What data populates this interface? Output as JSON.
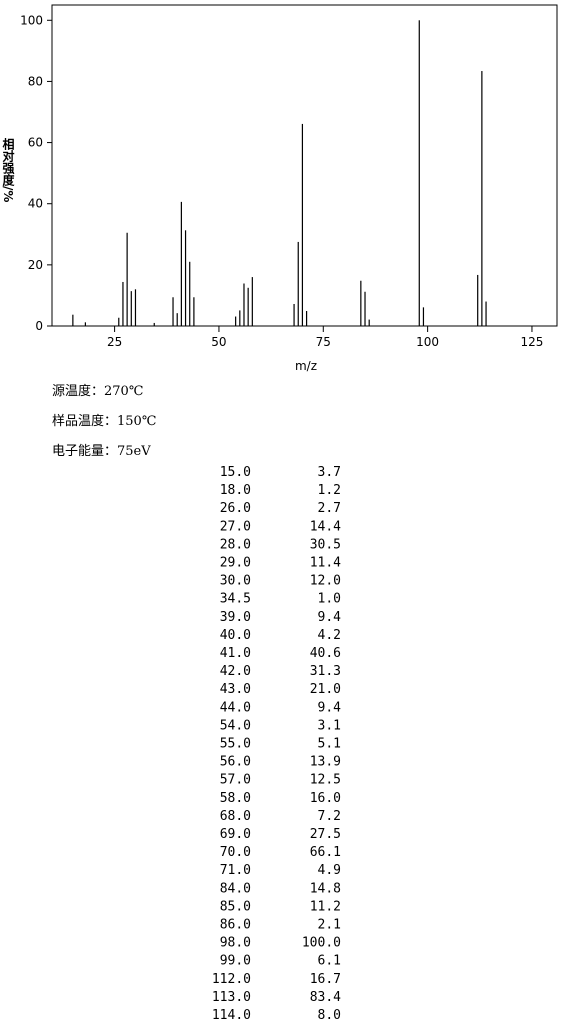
{
  "chart_data": {
    "type": "bar",
    "y_label": "相对强度/%",
    "x_label": "m/z",
    "color": "#000000",
    "x": [
      15.0,
      18.0,
      26.0,
      27.0,
      28.0,
      29.0,
      30.0,
      34.5,
      39.0,
      40.0,
      41.0,
      42.0,
      43.0,
      44.0,
      54.0,
      55.0,
      56.0,
      57.0,
      58.0,
      68.0,
      69.0,
      70.0,
      71.0,
      84.0,
      85.0,
      86.0,
      98.0,
      99.0,
      112.0,
      113.0,
      114.0
    ],
    "values": [
      3.7,
      1.2,
      2.7,
      14.4,
      30.5,
      11.4,
      12.0,
      1.0,
      9.4,
      4.2,
      40.6,
      31.3,
      21.0,
      9.4,
      3.1,
      5.1,
      13.9,
      12.5,
      16.0,
      7.2,
      27.5,
      66.1,
      4.9,
      14.8,
      11.2,
      2.1,
      100.0,
      6.1,
      16.7,
      83.4,
      8.0
    ],
    "xlim": [
      10,
      131
    ],
    "xticks": [
      25,
      50,
      75,
      100,
      125
    ],
    "ylim": [
      0,
      105
    ],
    "yticks": [
      0,
      20,
      40,
      60,
      80,
      100
    ]
  },
  "info": [
    "源温度：270℃",
    "样品温度：150℃",
    "电子能量：75eV"
  ],
  "table": {
    "rows": [
      [
        "15.0",
        "3.7"
      ],
      [
        "18.0",
        "1.2"
      ],
      [
        "26.0",
        "2.7"
      ],
      [
        "27.0",
        "14.4"
      ],
      [
        "28.0",
        "30.5"
      ],
      [
        "29.0",
        "11.4"
      ],
      [
        "30.0",
        "12.0"
      ],
      [
        "34.5",
        "1.0"
      ],
      [
        "39.0",
        "9.4"
      ],
      [
        "40.0",
        "4.2"
      ],
      [
        "41.0",
        "40.6"
      ],
      [
        "42.0",
        "31.3"
      ],
      [
        "43.0",
        "21.0"
      ],
      [
        "44.0",
        "9.4"
      ],
      [
        "54.0",
        "3.1"
      ],
      [
        "55.0",
        "5.1"
      ],
      [
        "56.0",
        "13.9"
      ],
      [
        "57.0",
        "12.5"
      ],
      [
        "58.0",
        "16.0"
      ],
      [
        "68.0",
        "7.2"
      ],
      [
        "69.0",
        "27.5"
      ],
      [
        "70.0",
        "66.1"
      ],
      [
        "71.0",
        "4.9"
      ],
      [
        "84.0",
        "14.8"
      ],
      [
        "85.0",
        "11.2"
      ],
      [
        "86.0",
        "2.1"
      ],
      [
        "98.0",
        "100.0"
      ],
      [
        "99.0",
        "6.1"
      ],
      [
        "112.0",
        "16.7"
      ],
      [
        "113.0",
        "83.4"
      ],
      [
        "114.0",
        "8.0"
      ]
    ]
  }
}
